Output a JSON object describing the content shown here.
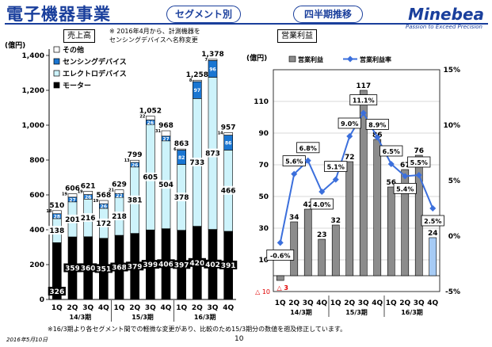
{
  "header": {
    "title": "電子機器事業",
    "segment_pill": "セグメント別",
    "period_pill": "四半期推移",
    "logo": "Minebea",
    "tagline": "Passion to Exceed Precision"
  },
  "left_panel": {
    "label": "売上高",
    "note": [
      "※ 2016年4月から、計測機器を",
      "センシングデバイスへ名称変更"
    ]
  },
  "right_panel": {
    "label": "営業利益"
  },
  "footer": {
    "note": "※16/3期より各セグメント間での軽微な変更があり、比較のため15/3期分の数値を遡及修正しています。",
    "date": "2016年5月10日",
    "page": "10"
  },
  "chart_data": [
    {
      "type": "bar",
      "stacked": true,
      "unit_label": "(億円)",
      "categories": [
        "1Q",
        "2Q",
        "3Q",
        "4Q",
        "1Q",
        "2Q",
        "3Q",
        "4Q",
        "1Q",
        "2Q",
        "3Q",
        "4Q"
      ],
      "category_groups": [
        {
          "label": "14/3期",
          "from": 0,
          "to": 3
        },
        {
          "label": "15/3期",
          "from": 4,
          "to": 7
        },
        {
          "label": "16/3期",
          "from": 8,
          "to": 11
        }
      ],
      "ylim": [
        0,
        1400
      ],
      "yticks": [
        0,
        200,
        400,
        600,
        800,
        1000,
        1200,
        1400
      ],
      "ytick_labels": [
        "0",
        "200",
        "400",
        "600",
        "800",
        "1,000",
        "1,200",
        "1,400"
      ],
      "legend": "top-left",
      "series": [
        {
          "name": "モーター",
          "color": "#000000",
          "values": [
            326,
            359,
            360,
            351,
            368,
            379,
            399,
            406,
            397,
            420,
            402,
            391
          ],
          "labels": [
            "326",
            "359",
            "360",
            "351",
            "368",
            "379",
            "399",
            "406",
            "397",
            "420",
            "402",
            "391"
          ]
        },
        {
          "name": "エレクトロデバイス",
          "color": "#cdf3fb",
          "values": [
            138,
            201,
            216,
            172,
            218,
            381,
            605,
            504,
            378,
            733,
            873,
            466
          ],
          "labels": [
            "138",
            "201",
            "216",
            "172",
            "218",
            "381",
            "605",
            "504",
            "378",
            "733",
            "873",
            "466"
          ]
        },
        {
          "name": "センシングデバイス",
          "color": "#1a76d2",
          "values": [
            28,
            27,
            26,
            26,
            22,
            26,
            26,
            27,
            82,
            97,
            96,
            86
          ],
          "labels": [
            "28",
            "27",
            "26",
            "26",
            "22",
            "26",
            "26",
            "27",
            "82",
            "97",
            "96",
            "86"
          ]
        },
        {
          "name": "その他",
          "color": "#ffffff",
          "values": [
            18,
            19,
            19,
            19,
            21,
            13,
            22,
            31,
            6,
            8,
            7,
            14
          ],
          "labels": [
            "18",
            "19",
            "19",
            "19",
            "21",
            "13",
            "22",
            "31",
            "6",
            "8",
            "7",
            "14"
          ]
        }
      ],
      "totals": [
        510,
        606,
        621,
        568,
        629,
        799,
        1052,
        968,
        863,
        1258,
        1378,
        957
      ],
      "total_labels": [
        "510",
        "606",
        "621",
        "568",
        "629",
        "799",
        "1,052",
        "968",
        "863",
        "1,258",
        "1,378",
        "957"
      ]
    },
    {
      "type": "bar",
      "secondary_type": "line",
      "unit_label": "(億円)",
      "categories": [
        "1Q",
        "2Q",
        "3Q",
        "4Q",
        "1Q",
        "2Q",
        "3Q",
        "4Q",
        "1Q",
        "2Q",
        "3Q",
        "4Q"
      ],
      "category_groups": [
        {
          "label": "14/3期",
          "from": 0,
          "to": 3
        },
        {
          "label": "15/3期",
          "from": 4,
          "to": 7
        },
        {
          "label": "16/3期",
          "from": 8,
          "to": 11
        }
      ],
      "ylim": [
        -10,
        130
      ],
      "yticks": [
        10,
        30,
        50,
        70,
        90,
        110
      ],
      "ytick_labels": [
        "10",
        "30",
        "50",
        "70",
        "90",
        "110"
      ],
      "bottom_tick_label": "△ 10",
      "y2lim": [
        -5,
        15
      ],
      "y2ticks": [
        -5,
        0,
        5,
        10,
        15
      ],
      "y2tick_labels": [
        "-5%",
        "0%",
        "5%",
        "10%",
        "15%"
      ],
      "legend": "top-center",
      "series": [
        {
          "name": "営業利益",
          "color": "#8c8c8c",
          "highlight_color": "#a6cbf5",
          "values": [
            -3,
            34,
            42,
            23,
            32,
            72,
            117,
            86,
            56,
            67,
            76,
            24
          ],
          "labels": [
            "△ 3",
            "34",
            "42",
            "23",
            "32",
            "72",
            "117",
            "86",
            "56",
            "67",
            "76",
            "24"
          ]
        },
        {
          "name": "営業利益率",
          "color": "#3b6fdc",
          "axis": "right",
          "values": [
            -0.6,
            5.6,
            6.8,
            4.0,
            5.1,
            9.0,
            11.1,
            8.9,
            6.5,
            5.4,
            5.5,
            2.5
          ],
          "labels": [
            "-0.6%",
            "5.6%",
            "6.8%",
            "4.0%",
            "5.1%",
            "9.0%",
            "11.1%",
            "8.9%",
            "6.5%",
            "5.4%",
            "5.5%",
            "2.5%"
          ]
        }
      ]
    }
  ]
}
